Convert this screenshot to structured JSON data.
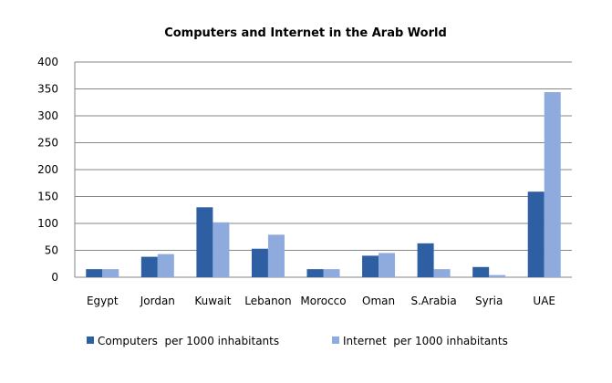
{
  "chart_data": {
    "type": "bar",
    "title": "Computers and Internet in the Arab World",
    "xlabel": "",
    "ylabel": "",
    "categories": [
      "Egypt",
      "Jordan",
      "Kuwait",
      "Lebanon",
      "Morocco",
      "Oman",
      "S.Arabia",
      "Syria",
      "UAE"
    ],
    "series": [
      {
        "name": "Computers  per 1000 inhabitants",
        "color": "#2E5FA3",
        "values": [
          15,
          38,
          130,
          53,
          15,
          40,
          63,
          19,
          159
        ]
      },
      {
        "name": "Internet  per 1000 inhabitants",
        "color": "#8FAADC",
        "values": [
          15,
          43,
          102,
          79,
          15,
          45,
          15,
          4,
          344
        ]
      }
    ],
    "ylim": [
      0,
      400
    ],
    "yticks": [
      0,
      50,
      100,
      150,
      200,
      250,
      300,
      350,
      400
    ],
    "grid": true,
    "legend": "bottom"
  }
}
